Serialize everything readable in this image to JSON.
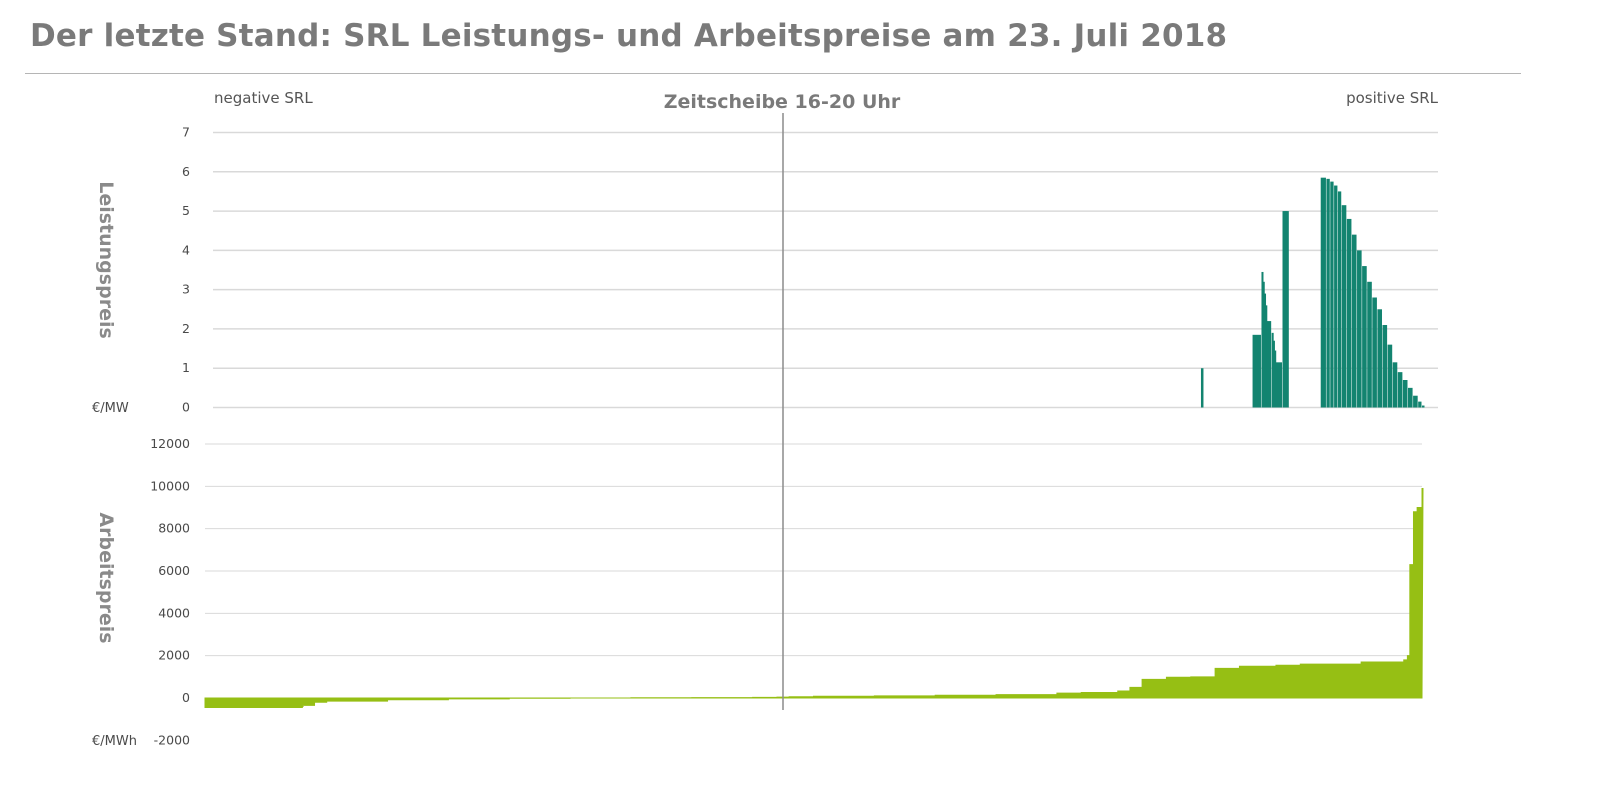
{
  "title": "Der letzte Stand: SRL Leistungs- und Arbeitspreise am 23. Juli 2018",
  "colors": {
    "top_series": "#138470",
    "bottom_series": "#96bf14",
    "grid": "#d9d9d9",
    "divider": "#8c8c8c"
  },
  "chart_data": [
    {
      "type": "bar",
      "title": "Zeitscheibe 16-20 Uhr",
      "left_label": "negative SRL",
      "right_label": "positive SRL",
      "ylabel": "Leistungspreis",
      "unit": "€/MW",
      "ylim": [
        0,
        7
      ],
      "yticks": [
        "7",
        "6",
        "5",
        "4",
        "3",
        "2",
        "1",
        "0"
      ],
      "grid": true,
      "series": [
        {
          "x": [
            0.653,
            0.734,
            0.748,
            0.75,
            0.752,
            0.754,
            0.756,
            0.764,
            0.766,
            0.768,
            0.77,
            0.781,
            0.783,
            0.785,
            0.787,
            0.841,
            0.85,
            0.856,
            0.862,
            0.868,
            0.874,
            0.882,
            0.89,
            0.898,
            0.906,
            0.914,
            0.922,
            0.93,
            0.938,
            0.946,
            0.954,
            0.962,
            0.97,
            0.978,
            0.986,
            0.994,
            1.0
          ],
          "values": [
            1.0,
            1.85,
            3.45,
            3.2,
            2.9,
            2.6,
            2.2,
            1.9,
            1.7,
            1.45,
            1.15,
            5.0,
            5.0,
            5.0,
            5.0,
            5.85,
            5.82,
            5.75,
            5.65,
            5.5,
            5.15,
            4.8,
            4.4,
            4.0,
            3.6,
            3.2,
            2.8,
            2.5,
            2.1,
            1.6,
            1.15,
            0.9,
            0.7,
            0.5,
            0.3,
            0.15,
            0.05
          ]
        }
      ]
    },
    {
      "type": "area",
      "ylabel": "Arbeitspreis",
      "unit": "€/MWh",
      "ylim": [
        -2000,
        12000
      ],
      "yticks": [
        "12000",
        "10000",
        "8000",
        "6000",
        "4000",
        "2000",
        "0",
        "-2000"
      ],
      "grid": true,
      "series": [
        {
          "x": [
            0.0,
            0.08,
            0.081,
            0.08,
            0.09,
            0.1,
            0.15,
            0.2,
            0.25,
            0.3,
            0.35,
            0.4,
            0.45,
            0.47,
            0.48,
            0.5,
            0.55,
            0.6,
            0.65,
            0.7,
            0.72,
            0.75,
            0.76,
            0.77,
            0.79,
            0.8,
            0.81,
            0.83,
            0.85,
            0.88,
            0.9,
            0.95,
            0.985,
            0.988,
            0.99,
            0.993,
            0.996,
            1.0
          ],
          "values": [
            -450,
            -400,
            -400,
            -350,
            -200,
            -150,
            -80,
            -40,
            -10,
            0,
            10,
            20,
            30,
            40,
            60,
            80,
            100,
            130,
            160,
            230,
            260,
            330,
            500,
            880,
            980,
            980,
            1000,
            1400,
            1500,
            1550,
            1600,
            1700,
            1800,
            2000,
            6300,
            8800,
            9000,
            9900
          ]
        }
      ]
    }
  ]
}
